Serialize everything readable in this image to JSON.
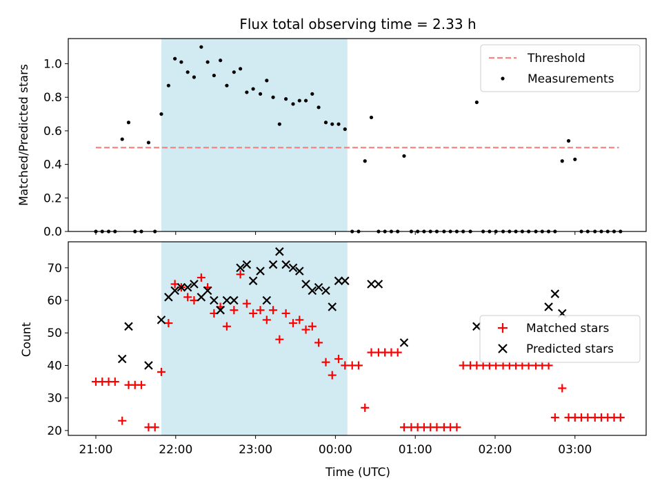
{
  "figure": {
    "title": "Flux total observing time = 2.33 h",
    "xlabel": "Time (UTC)",
    "x_ticks": [
      "21:00",
      "22:00",
      "23:00",
      "00:00",
      "01:00",
      "02:00",
      "03:00"
    ],
    "x_tick_hours": [
      0,
      1,
      2,
      3,
      4,
      5,
      6
    ],
    "x_axis_origin": "21:00",
    "highlight_span_hours": [
      0.82,
      3.15
    ],
    "colors": {
      "highlight": "#add8e6",
      "threshold": "#ff8080",
      "measurements": "#000000",
      "matched": "#ff0000",
      "predicted": "#000000"
    }
  },
  "chart_data": [
    {
      "type": "scatter",
      "ylabel": "Matched/Predicted stars",
      "ylim": [
        0,
        1.15
      ],
      "y_ticks": [
        0.0,
        0.2,
        0.4,
        0.6,
        0.8,
        1.0
      ],
      "y_tick_labels": [
        "0.0",
        "0.2",
        "0.4",
        "0.6",
        "0.8",
        "1.0"
      ],
      "legend": {
        "placement": "top-right",
        "entries": [
          "Threshold",
          "Measurements"
        ]
      },
      "threshold": {
        "name": "Threshold",
        "y": 0.5,
        "x_range": [
          0.0,
          6.55
        ]
      },
      "series": [
        {
          "name": "Measurements",
          "x": [
            0.0,
            0.08,
            0.16,
            0.24,
            0.33,
            0.41,
            0.49,
            0.57,
            0.66,
            0.74,
            0.82,
            0.91,
            0.99,
            1.07,
            1.15,
            1.23,
            1.32,
            1.4,
            1.48,
            1.56,
            1.64,
            1.73,
            1.81,
            1.89,
            1.97,
            2.06,
            2.14,
            2.22,
            2.3,
            2.38,
            2.47,
            2.55,
            2.63,
            2.71,
            2.79,
            2.88,
            2.96,
            3.04,
            3.12,
            3.21,
            3.29,
            3.37,
            3.45,
            3.54,
            3.62,
            3.7,
            3.78,
            3.86,
            3.95,
            4.03,
            4.11,
            4.19,
            4.27,
            4.36,
            4.44,
            4.52,
            4.6,
            4.69,
            4.77,
            4.85,
            4.93,
            5.01,
            5.1,
            5.18,
            5.26,
            5.34,
            5.42,
            5.51,
            5.59,
            5.67,
            5.75,
            5.84,
            5.92,
            6.0,
            6.08,
            6.16,
            6.25,
            6.33,
            6.41,
            6.49,
            6.57
          ],
          "y": [
            0,
            0,
            0,
            0,
            0.55,
            0.65,
            0,
            0,
            0.53,
            0,
            0.7,
            0.87,
            1.03,
            1.01,
            0.95,
            0.92,
            1.1,
            1.01,
            0.93,
            1.02,
            0.87,
            0.95,
            0.97,
            0.83,
            0.85,
            0.82,
            0.9,
            0.8,
            0.64,
            0.79,
            0.76,
            0.78,
            0.78,
            0.82,
            0.74,
            0.65,
            0.64,
            0.64,
            0.61,
            0,
            0,
            0.42,
            0.68,
            0,
            0,
            0,
            0,
            0.45,
            0,
            0,
            0,
            0,
            0,
            0,
            0,
            0,
            0,
            0,
            0.77,
            0,
            0,
            0,
            0,
            0,
            0,
            0,
            0,
            0,
            0,
            0,
            0,
            0.42,
            0.54,
            0.43,
            0,
            0,
            0,
            0,
            0,
            0,
            0
          ]
        }
      ]
    },
    {
      "type": "scatter",
      "ylabel": "Count",
      "ylim": [
        18.5,
        78
      ],
      "y_ticks": [
        20,
        30,
        40,
        50,
        60,
        70
      ],
      "y_tick_labels": [
        "20",
        "30",
        "40",
        "50",
        "60",
        "70"
      ],
      "legend": {
        "placement": "center-right",
        "entries": [
          "Matched stars",
          "Predicted stars"
        ]
      },
      "series": [
        {
          "name": "Matched stars",
          "marker": "plus",
          "x": [
            0.0,
            0.08,
            0.16,
            0.24,
            0.33,
            0.41,
            0.49,
            0.57,
            0.66,
            0.74,
            0.82,
            0.91,
            0.99,
            1.07,
            1.15,
            1.23,
            1.32,
            1.4,
            1.48,
            1.56,
            1.64,
            1.73,
            1.81,
            1.89,
            1.97,
            2.06,
            2.14,
            2.22,
            2.3,
            2.38,
            2.47,
            2.55,
            2.63,
            2.71,
            2.79,
            2.88,
            2.96,
            3.04,
            3.12,
            3.21,
            3.29,
            3.37,
            3.45,
            3.54,
            3.62,
            3.7,
            3.78,
            3.86,
            3.95,
            4.03,
            4.11,
            4.19,
            4.27,
            4.36,
            4.44,
            4.52,
            4.6,
            4.69,
            4.77,
            4.85,
            4.93,
            5.01,
            5.1,
            5.18,
            5.26,
            5.34,
            5.42,
            5.51,
            5.59,
            5.67,
            5.75,
            5.84,
            5.92,
            6.0,
            6.08,
            6.16,
            6.25,
            6.33,
            6.41,
            6.49,
            6.57
          ],
          "y": [
            35,
            35,
            35,
            35,
            23,
            34,
            34,
            34,
            21,
            21,
            38,
            53,
            65,
            64,
            61,
            60,
            67,
            64,
            56,
            58,
            52,
            57,
            68,
            59,
            56,
            57,
            54,
            57,
            48,
            56,
            53,
            54,
            51,
            52,
            47,
            41,
            37,
            42,
            40,
            40,
            40,
            27,
            44,
            44,
            44,
            44,
            44,
            21,
            21,
            21,
            21,
            21,
            21,
            21,
            21,
            21,
            40,
            40,
            40,
            40,
            40,
            40,
            40,
            40,
            40,
            40,
            40,
            40,
            40,
            40,
            24,
            33,
            24,
            24,
            24,
            24,
            24,
            24,
            24,
            24,
            24
          ]
        },
        {
          "name": "Predicted stars",
          "marker": "cross",
          "x": [
            0.33,
            0.41,
            0.66,
            0.82,
            0.91,
            0.99,
            1.07,
            1.15,
            1.23,
            1.32,
            1.4,
            1.48,
            1.56,
            1.64,
            1.73,
            1.81,
            1.89,
            1.97,
            2.06,
            2.14,
            2.22,
            2.3,
            2.38,
            2.47,
            2.55,
            2.63,
            2.71,
            2.79,
            2.88,
            2.96,
            3.04,
            3.12,
            3.45,
            3.54,
            3.86,
            4.77,
            5.67,
            5.75,
            5.84
          ],
          "y": [
            42,
            52,
            40,
            54,
            61,
            63,
            64,
            64,
            65,
            61,
            63,
            60,
            57,
            60,
            60,
            70,
            71,
            66,
            69,
            60,
            71,
            75,
            71,
            70,
            69,
            65,
            63,
            64,
            63,
            58,
            66,
            66,
            65,
            65,
            47,
            52,
            58,
            62,
            56
          ]
        }
      ]
    }
  ]
}
